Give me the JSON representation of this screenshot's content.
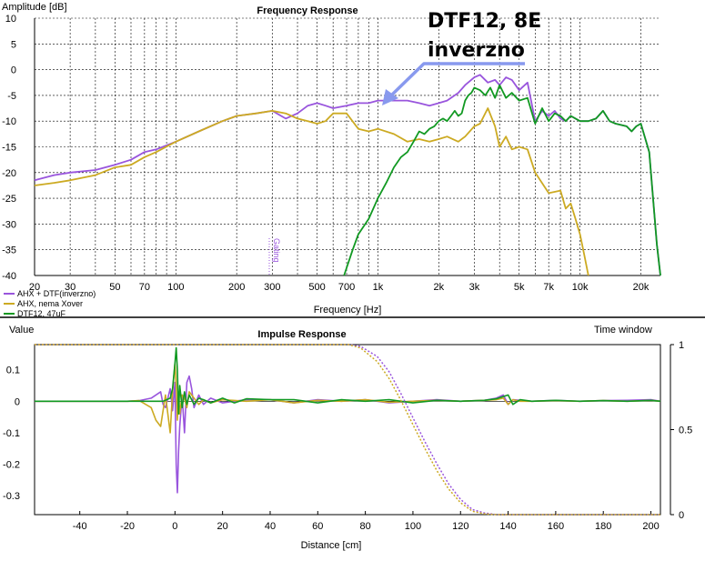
{
  "chart_data": [
    {
      "type": "line",
      "title": "Frequency Response",
      "xlabel": "Frequency [Hz]",
      "ylabel": "Amplitude [dB]",
      "xscale": "log",
      "xlim": [
        20,
        25000
      ],
      "ylim": [
        -40,
        10
      ],
      "yticks": [
        "10",
        "5",
        "0",
        "-5",
        "-10",
        "-15",
        "-20",
        "-25",
        "-30",
        "-35",
        "-40"
      ],
      "yticks_values": [
        10,
        5,
        0,
        -5,
        -10,
        -15,
        -20,
        -25,
        -30,
        -35,
        -40
      ],
      "xticks": [
        "20",
        "30",
        "50",
        "70",
        "100",
        "200",
        "300",
        "500",
        "700",
        "1k",
        "2k",
        "3k",
        "5k",
        "7k",
        "10k",
        "20k"
      ],
      "xticks_values": [
        20,
        30,
        50,
        70,
        100,
        200,
        300,
        500,
        700,
        1000,
        2000,
        3000,
        5000,
        7000,
        10000,
        20000
      ],
      "grid": true,
      "legend": "bottom-left",
      "series": [
        {
          "name": "AHX + DTF(inverzno)",
          "color": "#9955dd",
          "x": [
            20,
            25,
            30,
            40,
            50,
            60,
            70,
            80,
            100,
            130,
            170,
            200,
            250,
            300,
            350,
            400,
            450,
            500,
            550,
            600,
            700,
            800,
            900,
            1000,
            1200,
            1400,
            1600,
            1800,
            2000,
            2200,
            2500,
            2700,
            3000,
            3200,
            3500,
            3800,
            4000,
            4300,
            4600,
            5000,
            5500,
            6000,
            6500,
            7000,
            7500,
            8000,
            8500,
            9000,
            10000,
            11000,
            12000,
            13000,
            14000,
            15000,
            17000,
            18000,
            19000,
            20000,
            22000,
            24000,
            25000
          ],
          "values": [
            -21.5,
            -20.5,
            -20,
            -19.5,
            -18.5,
            -17.5,
            -16,
            -15.5,
            -14,
            -12,
            -10,
            -9,
            -8.5,
            -8,
            -9.5,
            -8.5,
            -7,
            -6.5,
            -7,
            -7.5,
            -7,
            -6.5,
            -6.5,
            -6,
            -6,
            -6,
            -6.5,
            -7,
            -6.5,
            -6,
            -4.5,
            -3,
            -1.5,
            -1,
            -2.5,
            -2,
            -3,
            -1.5,
            -2,
            -4,
            -2.5,
            -10,
            -8,
            -9,
            -8,
            -9.5,
            -10,
            -9,
            -10,
            -10,
            -9.5,
            -8,
            -10,
            -10.5,
            -11,
            -12,
            -11,
            -10.5,
            -16,
            -34,
            -40
          ]
        },
        {
          "name": "AHX, nema Xover",
          "color": "#ccaa22",
          "x": [
            20,
            25,
            30,
            40,
            50,
            60,
            70,
            80,
            100,
            130,
            170,
            200,
            250,
            300,
            350,
            400,
            450,
            500,
            550,
            600,
            700,
            800,
            900,
            1000,
            1200,
            1400,
            1600,
            1800,
            2000,
            2200,
            2500,
            2700,
            3000,
            3200,
            3500,
            3800,
            4000,
            4300,
            4600,
            5000,
            5500,
            6000,
            7000,
            8000,
            8500,
            9000,
            9500,
            10000,
            10500,
            11000
          ],
          "values": [
            -22.5,
            -22,
            -21.5,
            -20.5,
            -19,
            -18.5,
            -17,
            -16,
            -14,
            -12,
            -10,
            -9,
            -8.5,
            -8,
            -8.5,
            -9.5,
            -10,
            -10.5,
            -10,
            -8.5,
            -8.5,
            -11.5,
            -12,
            -11.5,
            -12.5,
            -14,
            -13.5,
            -14,
            -13.5,
            -13,
            -14,
            -13,
            -11,
            -10.5,
            -7.5,
            -11,
            -15,
            -13,
            -15.5,
            -15,
            -15.5,
            -20,
            -24,
            -23.5,
            -27,
            -26,
            -29,
            -32,
            -36,
            -40
          ]
        },
        {
          "name": "DTF12, 47uF",
          "color": "#119922",
          "x": [
            680,
            750,
            800,
            900,
            1000,
            1100,
            1200,
            1300,
            1400,
            1500,
            1600,
            1700,
            1800,
            1900,
            2000,
            2100,
            2200,
            2300,
            2400,
            2500,
            2600,
            2700,
            2800,
            2900,
            3000,
            3200,
            3400,
            3600,
            3800,
            4000,
            4300,
            4600,
            5000,
            5500,
            6000,
            6500,
            7000,
            7500,
            8000,
            8500,
            9000,
            10000,
            11000,
            12000,
            13000,
            14000,
            15000,
            17000,
            18000,
            19000,
            20000,
            22000,
            24000,
            25000
          ],
          "values": [
            -40,
            -35,
            -32,
            -29,
            -25,
            -22,
            -19,
            -17,
            -16,
            -14,
            -12,
            -12.5,
            -11.5,
            -11,
            -10,
            -9.5,
            -10,
            -9,
            -8,
            -9,
            -8.5,
            -6,
            -5,
            -4.5,
            -3.5,
            -4,
            -5,
            -3.5,
            -5.5,
            -3,
            -5.5,
            -4.5,
            -6,
            -5.5,
            -10.5,
            -7.5,
            -10,
            -8.5,
            -9,
            -10,
            -9,
            -10,
            -10,
            -9.5,
            -8,
            -10,
            -10.5,
            -11,
            -12,
            -11,
            -10.5,
            -16,
            -34,
            -40
          ]
        }
      ],
      "annotations": [
        "DTF12, 8E",
        "inverzno",
        "Gating"
      ]
    },
    {
      "type": "line",
      "title": "Impulse Response",
      "xlabel": "Distance [cm]",
      "ylabel": "Value",
      "xlim": [
        -59,
        204
      ],
      "ylim": [
        -0.36,
        0.18
      ],
      "yticks": [
        "0.1",
        "0",
        "-0.1",
        "-0.2",
        "-0.3"
      ],
      "yticks_values": [
        0.1,
        0,
        -0.1,
        -0.2,
        -0.3
      ],
      "xticks": [
        "-40",
        "-20",
        "0",
        "20",
        "40",
        "60",
        "80",
        "100",
        "120",
        "140",
        "160",
        "180",
        "200"
      ],
      "xticks_values": [
        -40,
        -20,
        0,
        20,
        40,
        60,
        80,
        100,
        120,
        140,
        160,
        180,
        200
      ],
      "secondary_axis": {
        "label": "Time window",
        "ticks": [
          "1",
          "0.5",
          "0"
        ],
        "ticks_values": [
          1,
          0.5,
          0
        ]
      },
      "grid": false,
      "series": [
        {
          "name": "AHX + DTF(inverzno)",
          "color": "#9955dd",
          "x": [
            -59,
            -20,
            -15,
            -10,
            -8,
            -6,
            -5,
            -4,
            -3,
            -2,
            -1,
            0,
            0.5,
            1,
            1.5,
            2,
            3,
            4,
            5,
            6,
            7,
            8,
            10,
            12,
            15,
            20,
            30,
            40,
            50,
            60,
            70,
            80,
            90,
            100,
            110,
            120,
            130,
            135,
            138,
            140,
            142,
            145,
            150,
            160,
            170,
            180,
            190,
            200,
            204
          ],
          "values": [
            0,
            0,
            0.002,
            0.01,
            0.02,
            0.03,
            -0.01,
            -0.02,
            0.01,
            0.04,
            -0.03,
            0.06,
            -0.2,
            -0.29,
            -0.16,
            -0.08,
            0.02,
            -0.1,
            0.06,
            0.08,
            0.04,
            -0.02,
            0.02,
            -0.01,
            0.01,
            -0.005,
            0.005,
            0.005,
            -0.005,
            0.005,
            0,
            0.005,
            -0.005,
            0,
            0.005,
            0,
            0.003,
            0.01,
            0.02,
            -0.01,
            0.005,
            0.003,
            0,
            0.003,
            0,
            0.002,
            0.003,
            0.005,
            0
          ]
        },
        {
          "name": "AHX, nema Xover",
          "color": "#ccaa22",
          "x": [
            -59,
            -20,
            -15,
            -10,
            -8,
            -6,
            -4,
            -3,
            -2,
            -1,
            0,
            0.5,
            1,
            1.5,
            2,
            3,
            4,
            5,
            6,
            8,
            10,
            12,
            15,
            20,
            30,
            40,
            50,
            60,
            70,
            80,
            90,
            100,
            110,
            120,
            130,
            135,
            138,
            140,
            142,
            145,
            150,
            160,
            170,
            180,
            190,
            200,
            204
          ],
          "values": [
            0,
            0,
            0.002,
            -0.02,
            -0.06,
            -0.08,
            0.02,
            -0.04,
            -0.1,
            0.03,
            0.12,
            0.05,
            -0.06,
            0.03,
            -0.04,
            0.02,
            0.01,
            -0.02,
            0.03,
            0.01,
            -0.01,
            0.005,
            -0.005,
            0.005,
            0,
            0.005,
            -0.005,
            0.003,
            0,
            0.005,
            -0.003,
            0,
            0.003,
            0,
            0.003,
            0.005,
            0.01,
            -0.01,
            0.005,
            0,
            0,
            0.002,
            0,
            0.002,
            0,
            0.003,
            0
          ]
        },
        {
          "name": "DTF12, 47uF",
          "color": "#119922",
          "x": [
            -59,
            -20,
            -15,
            -5,
            -2,
            -1,
            0,
            0.5,
            1,
            1.5,
            2,
            3,
            4,
            5,
            6,
            8,
            10,
            12,
            15,
            20,
            25,
            30,
            40,
            50,
            60,
            70,
            80,
            90,
            100,
            110,
            120,
            130,
            135,
            138,
            140,
            142,
            145,
            150,
            160,
            170,
            180,
            190,
            200,
            204
          ],
          "values": [
            0,
            0,
            0,
            0,
            0.01,
            0.04,
            0.12,
            0.17,
            0.1,
            -0.04,
            0.05,
            -0.02,
            0.03,
            -0.01,
            0.02,
            -0.01,
            0.01,
            0.005,
            -0.005,
            0.01,
            -0.005,
            0.008,
            0.005,
            0.005,
            -0.005,
            0.005,
            0,
            0.005,
            -0.005,
            0.003,
            0,
            0.003,
            0.008,
            0.015,
            0.02,
            -0.01,
            0.005,
            0,
            0.003,
            0,
            0.002,
            0,
            0.003,
            0
          ]
        },
        {
          "name": "Time window AHX + DTF(inverzno)",
          "color": "#9955dd",
          "dashed": true,
          "axis": "secondary",
          "x": [
            -59,
            73,
            78,
            85,
            90,
            95,
            100,
            105,
            110,
            115,
            120,
            125,
            130,
            135,
            140,
            204
          ],
          "values": [
            1,
            1,
            0.99,
            0.93,
            0.84,
            0.71,
            0.57,
            0.43,
            0.3,
            0.18,
            0.09,
            0.03,
            0.01,
            0,
            0,
            0
          ]
        },
        {
          "name": "Time window AHX, nema Xover",
          "color": "#ccaa22",
          "dashed": true,
          "axis": "secondary",
          "x": [
            -59,
            73,
            78,
            85,
            90,
            95,
            100,
            105,
            110,
            115,
            120,
            125,
            130,
            135,
            140,
            204
          ],
          "values": [
            1,
            1,
            0.98,
            0.9,
            0.8,
            0.67,
            0.53,
            0.39,
            0.26,
            0.15,
            0.07,
            0.02,
            0.005,
            0,
            0,
            0
          ]
        }
      ]
    }
  ]
}
